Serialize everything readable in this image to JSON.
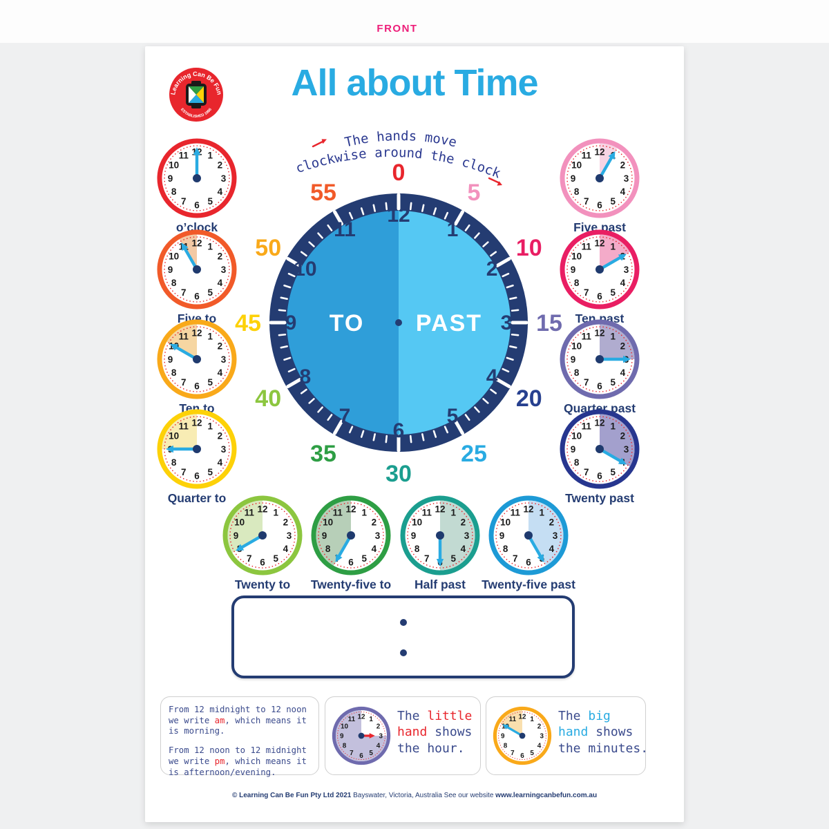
{
  "front_label": "FRONT",
  "front_color": "#ed1e79",
  "logo": {
    "arc_text": "Learning Can Be Fun",
    "established": "ESTABLISHED 1986"
  },
  "title": "All about Time",
  "note": {
    "line1": "The hands move",
    "line2": "clockwise around the clock"
  },
  "main_clock": {
    "to_label": "TO",
    "past_label": "PAST",
    "ring_color": "#243c72",
    "to_half_color": "#2f9ed9",
    "past_half_color": "#55c8f3",
    "hours": [
      1,
      2,
      3,
      4,
      5,
      6,
      7,
      8,
      9,
      10,
      11,
      12
    ],
    "minute_labels": [
      {
        "value": 0,
        "color": "#e8262d"
      },
      {
        "value": 5,
        "color": "#f291bd"
      },
      {
        "value": 10,
        "color": "#e91e63"
      },
      {
        "value": 15,
        "color": "#6f6bae"
      },
      {
        "value": 20,
        "color": "#27408f"
      },
      {
        "value": 25,
        "color": "#29abe2"
      },
      {
        "value": 30,
        "color": "#1b9e8f"
      },
      {
        "value": 35,
        "color": "#2e9e44"
      },
      {
        "value": 40,
        "color": "#8cc63f"
      },
      {
        "value": 45,
        "color": "#fdd108"
      },
      {
        "value": 50,
        "color": "#f9a91a"
      },
      {
        "value": 55,
        "color": "#f15a29"
      }
    ]
  },
  "hand_color": "#29abe2",
  "center_dot_color": "#1f3a6e",
  "mini_clocks": [
    {
      "label": "o’clock",
      "ring": "#e8262d",
      "wedge": null,
      "hand": 12,
      "group": "left",
      "index": 0
    },
    {
      "label": "Five to",
      "ring": "#f15a29",
      "wedge": {
        "from": 11,
        "to": 12,
        "color": "#f3c9a4"
      },
      "hand": 11,
      "group": "left",
      "index": 1
    },
    {
      "label": "Ten to",
      "ring": "#f9a91a",
      "wedge": {
        "from": 10,
        "to": 12,
        "color": "#f6d6a2"
      },
      "hand": 10,
      "group": "left",
      "index": 2
    },
    {
      "label": "Quarter to",
      "ring": "#fdd108",
      "wedge": {
        "from": 9,
        "to": 12,
        "color": "#f8ecb4"
      },
      "hand": 9,
      "group": "left",
      "index": 3
    },
    {
      "label": "Five past",
      "ring": "#f291bd",
      "wedge": {
        "from": 12,
        "to": 1,
        "color": "#f7d4e4"
      },
      "hand": 1,
      "group": "right",
      "index": 0
    },
    {
      "label": "Ten past",
      "ring": "#e91e63",
      "wedge": {
        "from": 12,
        "to": 2,
        "color": "#f4abc9"
      },
      "hand": 2,
      "group": "right",
      "index": 1
    },
    {
      "label": "Quarter past",
      "ring": "#6f6bae",
      "wedge": {
        "from": 12,
        "to": 3,
        "color": "#b0accf"
      },
      "hand": 3,
      "group": "right",
      "index": 2
    },
    {
      "label": "Twenty past",
      "ring": "#27368f",
      "wedge": {
        "from": 12,
        "to": 4,
        "color": "#a3a0cd"
      },
      "hand": 4,
      "group": "right",
      "index": 3
    },
    {
      "label": "Twenty to",
      "ring": "#8cc63f",
      "wedge": {
        "from": 8,
        "to": 12,
        "color": "#d9e9bf"
      },
      "hand": 8,
      "group": "bottom",
      "index": 0
    },
    {
      "label": "Twenty-five to",
      "ring": "#2e9e44",
      "wedge": {
        "from": 7,
        "to": 12,
        "color": "#b7cfb8"
      },
      "hand": 7,
      "group": "bottom",
      "index": 1
    },
    {
      "label": "Half past",
      "ring": "#1b9e8f",
      "wedge": {
        "from": 12,
        "to": 6,
        "color": "#c2dad2"
      },
      "hand": 6,
      "group": "bottom",
      "index": 2
    },
    {
      "label": "Twenty-five past",
      "ring": "#1d9ad6",
      "wedge": {
        "from": 12,
        "to": 5,
        "color": "#c5def3"
      },
      "hand": 5,
      "group": "bottom",
      "index": 3
    }
  ],
  "digital_box": {
    "separator": ":"
  },
  "info_boxes": {
    "ampm": {
      "highlight_color": "#e8262d",
      "p1": [
        "From 12 midnight to 12 noon",
        "we write ",
        "am",
        ", which means it",
        "is morning."
      ],
      "p2": [
        "From 12 noon to 12 midnight",
        "we write ",
        "pm",
        ", which means it",
        "is afternoon/evening."
      ]
    },
    "little_hand": {
      "highlight_color": "#e8262d",
      "words": [
        "The ",
        "little",
        "hand",
        " shows",
        "the hour."
      ],
      "clock": {
        "ring": "#6f6bae",
        "wedge": {
          "from": 3,
          "to": 12,
          "color": "#c3c0dd"
        },
        "hand": 3,
        "hand_color": "#e8262d",
        "hand_len": "short"
      }
    },
    "big_hand": {
      "highlight_color": "#29abe2",
      "words": [
        "The ",
        "big",
        "hand",
        " shows",
        "the minutes."
      ],
      "clock": {
        "ring": "#f9a91a",
        "wedge": {
          "from": 10,
          "to": 12,
          "color": "#f9dfae"
        },
        "hand": 10,
        "hand_color": "#29abe2",
        "hand_len": "long"
      }
    }
  },
  "footer": {
    "part1": "© Learning Can Be Fun Pty Ltd 2021",
    "part2": " Bayswater, Victoria, Australia  See our website ",
    "part3": "www.learningcanbefun.com.au"
  }
}
